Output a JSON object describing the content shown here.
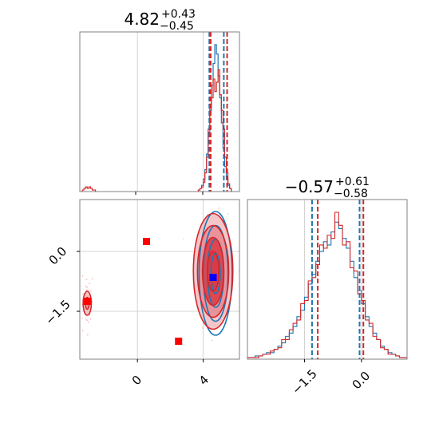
{
  "colors": {
    "blue": "#1f77b4",
    "red": "#d62728",
    "marker_red": "#ff0000",
    "marker_blue": "#0000ff",
    "grid": "#c8c8c8",
    "axis": "#808080",
    "fill_light": "#f2bcc0",
    "fill_mid": "#e98a92",
    "fill_dark": "#d93a44"
  },
  "chart_data": [
    {
      "type": "histogram",
      "panel": "marginal-param-1",
      "title": {
        "value": "4.82",
        "upper": "+0.43",
        "lower": "−0.45"
      },
      "xlim": [
        -3.5,
        6.2
      ],
      "grid": true,
      "ticks_shown": false,
      "quantile_lines": [
        {
          "series": "blue",
          "values": [
            4.37,
            5.25
          ]
        },
        {
          "series": "red",
          "values": [
            4.45,
            5.45
          ]
        }
      ],
      "series": [
        {
          "color": "blue",
          "bins_x": [
            3.75,
            3.85,
            3.95,
            4.05,
            4.15,
            4.25,
            4.35,
            4.45,
            4.55,
            4.65,
            4.75,
            4.85,
            4.95,
            5.05,
            5.15,
            5.25,
            5.35,
            5.45,
            5.55,
            5.65
          ],
          "values": [
            1,
            2,
            4,
            8,
            14,
            24,
            38,
            52,
            68,
            82,
            94,
            88,
            74,
            60,
            44,
            28,
            16,
            8,
            4,
            2
          ]
        },
        {
          "color": "red",
          "bins_x": [
            3.75,
            3.85,
            3.95,
            4.05,
            4.15,
            4.25,
            4.35,
            4.45,
            4.55,
            4.65,
            4.75,
            4.85,
            4.95,
            5.05,
            5.15,
            5.25,
            5.35,
            5.45,
            5.55,
            5.65
          ],
          "values": [
            1,
            2,
            3,
            6,
            12,
            22,
            40,
            56,
            60,
            72,
            64,
            70,
            78,
            62,
            52,
            40,
            22,
            12,
            5,
            2
          ],
          "secondary_mode": {
            "x": [
              -3.3,
              -3.2,
              -3.1,
              -3.0,
              -2.9,
              -2.8,
              -2.7,
              -2.6
            ],
            "values": [
              1,
              2,
              3,
              2,
              3,
              2,
              1,
              1
            ]
          }
        }
      ]
    },
    {
      "type": "histogram",
      "panel": "marginal-param-2",
      "title": {
        "value": "−0.57",
        "upper": "+0.61",
        "lower": "−0.58"
      },
      "xlim": [
        -3.0,
        1.2
      ],
      "grid": true,
      "x_tick_labels": [
        "−1.5",
        "0.0"
      ],
      "x_ticks": [
        -1.5,
        0.0
      ],
      "quantile_lines": [
        {
          "series": "blue",
          "values": [
            -1.3,
            -0.05
          ]
        },
        {
          "series": "red",
          "values": [
            -1.15,
            0.05
          ]
        }
      ],
      "series": [
        {
          "color": "blue",
          "bins_x": [
            -2.95,
            -2.85,
            -2.75,
            -2.65,
            -2.55,
            -2.45,
            -2.35,
            -2.25,
            -2.15,
            -2.05,
            -1.95,
            -1.85,
            -1.75,
            -1.65,
            -1.55,
            -1.45,
            -1.35,
            -1.25,
            -1.15,
            -1.05,
            -0.95,
            -0.85,
            -0.75,
            -0.65,
            -0.55,
            -0.45,
            -0.35,
            -0.25,
            -0.15,
            -0.05,
            0.05,
            0.15,
            0.25,
            0.35,
            0.45,
            0.55,
            0.65,
            0.75,
            0.85,
            0.95,
            1.05,
            1.15
          ],
          "values": [
            1,
            1,
            2,
            2,
            3,
            4,
            4,
            6,
            8,
            10,
            14,
            16,
            20,
            26,
            30,
            38,
            46,
            52,
            60,
            66,
            72,
            70,
            78,
            84,
            80,
            74,
            68,
            60,
            50,
            42,
            34,
            26,
            20,
            16,
            12,
            8,
            6,
            4,
            3,
            2,
            1,
            1
          ]
        },
        {
          "color": "red",
          "bins_x": [
            -2.95,
            -2.85,
            -2.75,
            -2.65,
            -2.55,
            -2.45,
            -2.35,
            -2.25,
            -2.15,
            -2.05,
            -1.95,
            -1.85,
            -1.75,
            -1.65,
            -1.55,
            -1.45,
            -1.35,
            -1.25,
            -1.15,
            -1.05,
            -0.95,
            -0.85,
            -0.75,
            -0.65,
            -0.55,
            -0.45,
            -0.35,
            -0.25,
            -0.15,
            -0.05,
            0.05,
            0.15,
            0.25,
            0.35,
            0.45,
            0.55,
            0.65,
            0.75,
            0.85,
            0.95,
            1.05,
            1.15
          ],
          "values": [
            1,
            1,
            1,
            2,
            3,
            3,
            5,
            6,
            7,
            12,
            12,
            18,
            22,
            24,
            34,
            36,
            48,
            50,
            58,
            70,
            68,
            76,
            74,
            90,
            82,
            70,
            72,
            56,
            54,
            40,
            36,
            24,
            22,
            14,
            12,
            7,
            6,
            3,
            3,
            2,
            1,
            1
          ]
        }
      ]
    },
    {
      "type": "scatter",
      "panel": "joint-param-1-vs-param-2",
      "xlim": [
        -3.5,
        6.2
      ],
      "ylim": [
        -2.7,
        1.3
      ],
      "grid": true,
      "x_ticks": [
        0,
        4
      ],
      "x_tick_labels": [
        "0",
        "4"
      ],
      "y_ticks": [
        0.0,
        -1.5
      ],
      "y_tick_labels": [
        "0.0",
        "−1.5"
      ],
      "contours": [
        {
          "color": "blue",
          "center": [
            4.75,
            -0.55
          ],
          "levels": [
            {
              "rx": 1.0,
              "ry": 1.55
            },
            {
              "rx": 0.75,
              "ry": 1.2
            },
            {
              "rx": 0.5,
              "ry": 0.85
            },
            {
              "rx": 0.28,
              "ry": 0.5
            }
          ]
        },
        {
          "color": "red",
          "center": [
            4.6,
            -0.5
          ],
          "levels": [
            {
              "rx": 1.2,
              "ry": 1.45
            },
            {
              "rx": 0.95,
              "ry": 1.15
            },
            {
              "rx": 0.65,
              "ry": 0.85
            },
            {
              "rx": 0.35,
              "ry": 0.5
            }
          ]
        },
        {
          "color": "red",
          "center": [
            -3.05,
            -1.3
          ],
          "levels": [
            {
              "rx": 0.25,
              "ry": 0.3
            },
            {
              "rx": 0.12,
              "ry": 0.15
            }
          ]
        }
      ],
      "square_markers": [
        {
          "color": "marker_red",
          "x": 0.55,
          "y": 0.25
        },
        {
          "color": "marker_red",
          "x": 2.5,
          "y": -2.25
        },
        {
          "color": "marker_red",
          "x": -3.05,
          "y": -1.25
        },
        {
          "color": "marker_blue",
          "x": 4.6,
          "y": -0.65
        }
      ]
    }
  ]
}
